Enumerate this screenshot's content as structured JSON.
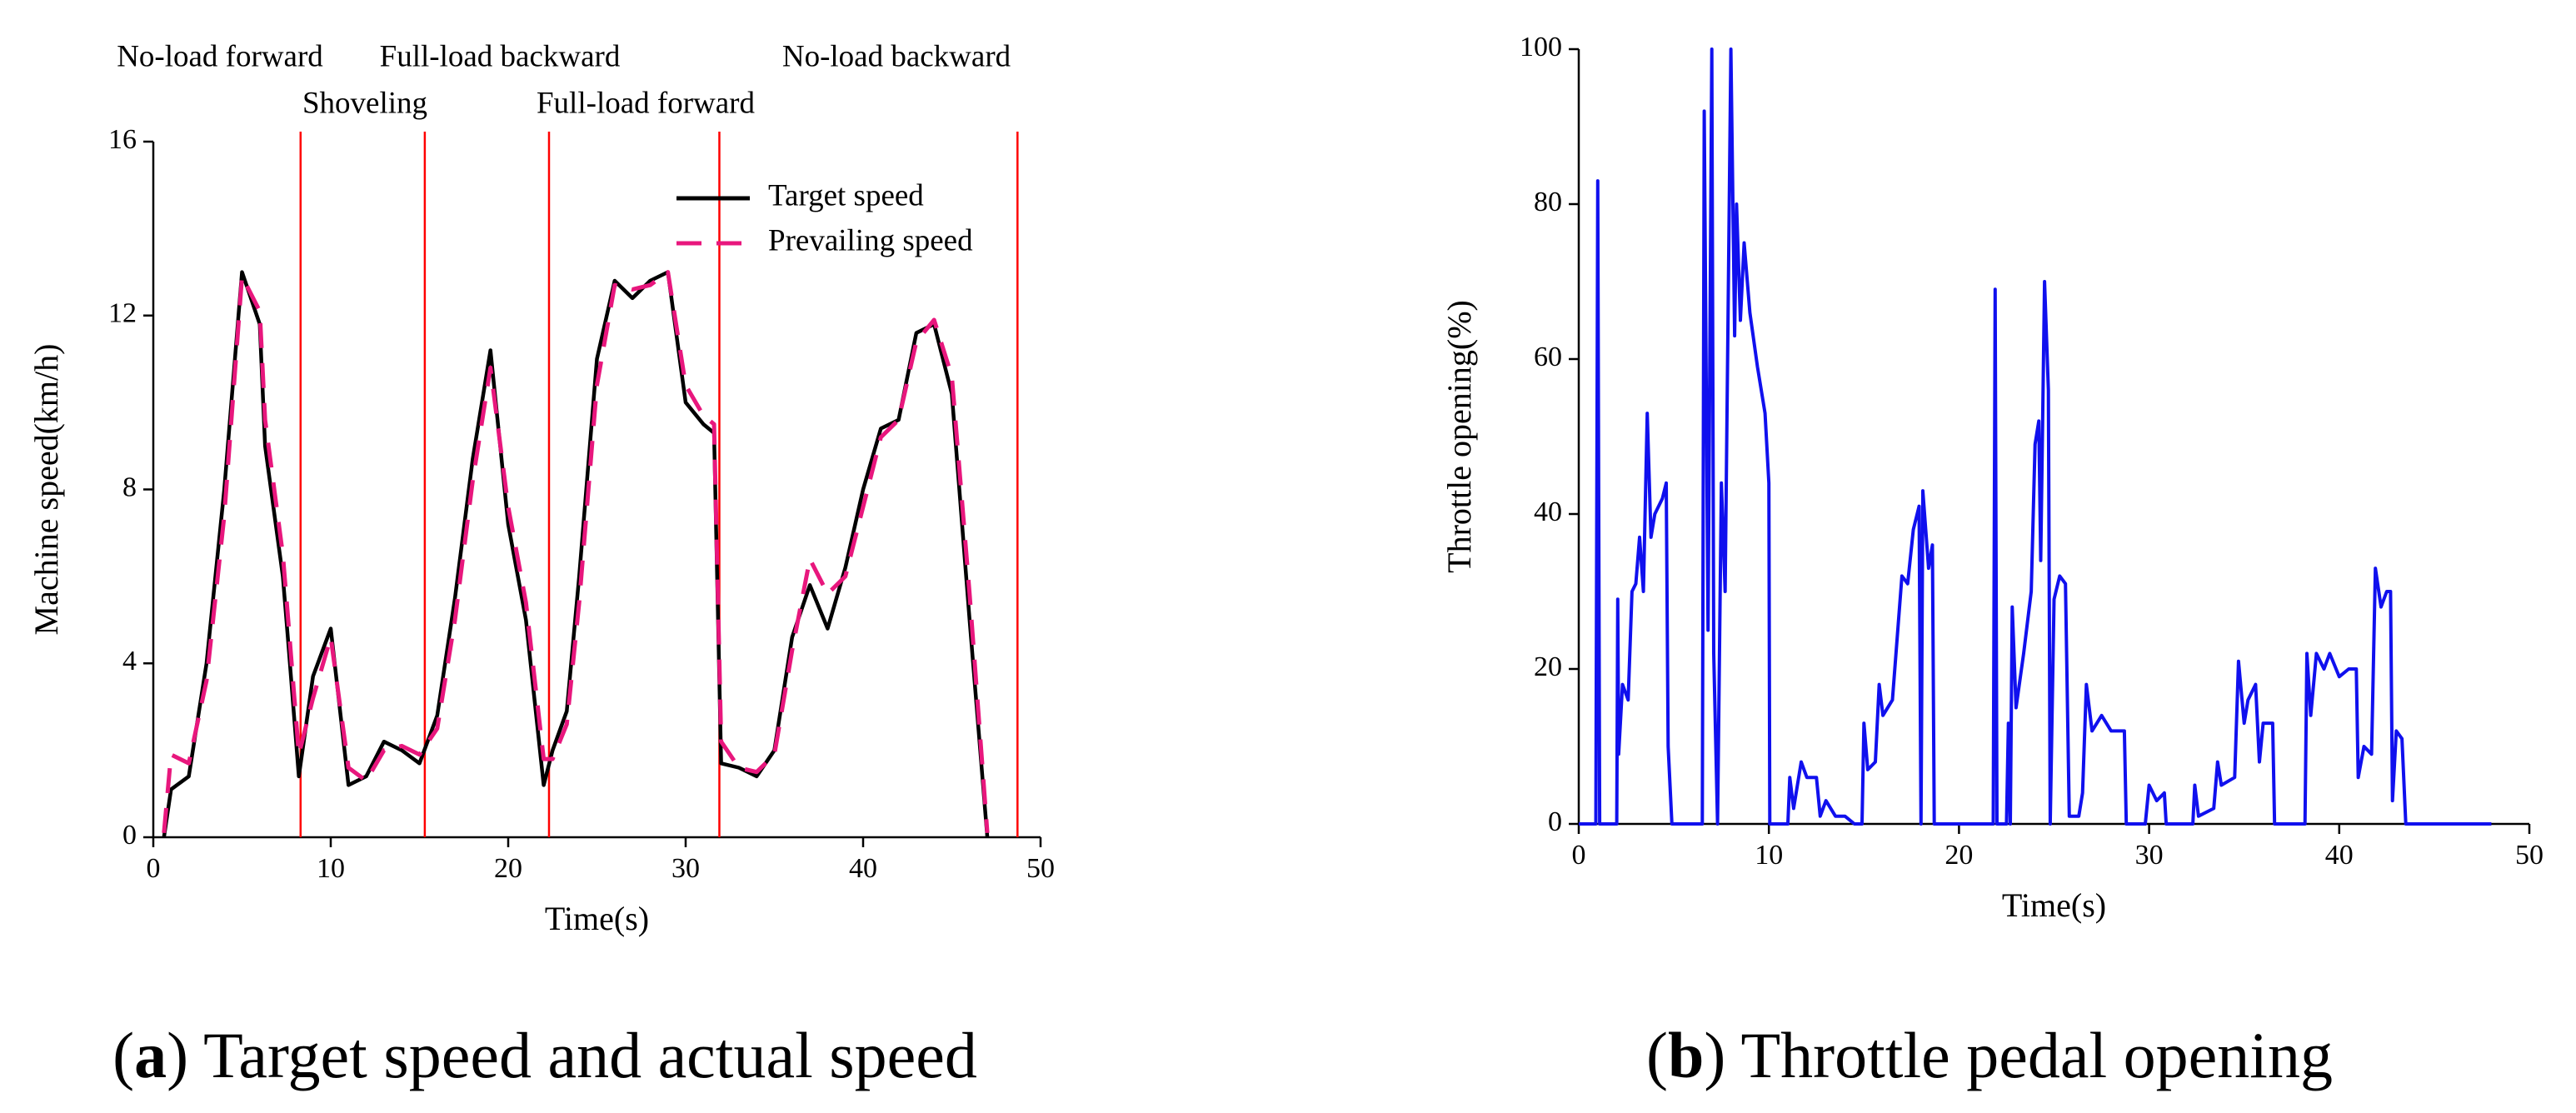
{
  "chart_data": [
    {
      "type": "line",
      "xlabel": "Time(s)",
      "ylabel": "Machine speed(km/h)",
      "caption": {
        "open": "(",
        "label": "a",
        "text": ") Target speed and actual speed"
      },
      "annotations": [
        "No-load forward",
        "Shoveling",
        "Full-load backward",
        "Full-load forward",
        "No-load backward"
      ],
      "vlines": {
        "color": "#ff0000",
        "x": [
          8.3,
          15.3,
          22.3,
          31.9,
          48.7
        ]
      },
      "xlim": [
        0,
        50
      ],
      "xticks": [
        0,
        10,
        20,
        30,
        40,
        50
      ],
      "ylim": [
        0,
        16
      ],
      "yticks": [
        0,
        4,
        8,
        12,
        16
      ],
      "legend": "upper right",
      "x": [
        0.6,
        1.0,
        2.0,
        3.0,
        4.0,
        5.0,
        6.0,
        6.3,
        7.3,
        7.6,
        8.2,
        9.0,
        10.0,
        11.0,
        12.0,
        13.0,
        14.0,
        15.0,
        16.0,
        17.0,
        18.0,
        19.0,
        20.0,
        21.0,
        22.0,
        22.5,
        23.3,
        24.0,
        25.0,
        26.0,
        27.0,
        28.0,
        29.0,
        30.0,
        31.0,
        31.6,
        32.0,
        33.0,
        34.0,
        35.0,
        36.0,
        37.0,
        38.0,
        39.0,
        40.0,
        41.0,
        42.0,
        43.0,
        44.0,
        45.0,
        46.0,
        47.0
      ],
      "series": [
        {
          "name": "Target speed",
          "color": "#000000",
          "dash": false,
          "values": [
            0,
            1.1,
            1.4,
            4.0,
            8.0,
            13.0,
            11.8,
            9.0,
            6.0,
            4.5,
            1.4,
            3.7,
            4.8,
            1.2,
            1.4,
            2.2,
            2.0,
            1.7,
            2.8,
            5.5,
            8.7,
            11.2,
            7.2,
            5.0,
            1.2,
            2.0,
            2.9,
            6.0,
            11.0,
            12.8,
            12.4,
            12.8,
            13.0,
            10.0,
            9.5,
            9.3,
            1.7,
            1.6,
            1.4,
            2.0,
            4.6,
            5.8,
            4.8,
            6.2,
            8.0,
            9.4,
            9.6,
            11.6,
            11.8,
            10.2,
            5.0,
            0
          ]
        },
        {
          "name": "Prevailing speed",
          "color": "#e8177d",
          "dash": true,
          "values": [
            0.1,
            1.9,
            1.7,
            3.6,
            7.4,
            12.9,
            12.1,
            9.6,
            6.5,
            5.0,
            1.9,
            3.2,
            4.6,
            1.6,
            1.3,
            2.0,
            2.1,
            1.9,
            2.5,
            5.0,
            8.2,
            10.8,
            7.6,
            5.4,
            1.8,
            1.8,
            2.6,
            5.4,
            10.4,
            12.7,
            12.6,
            12.7,
            13.0,
            10.4,
            9.7,
            9.5,
            2.2,
            1.6,
            1.5,
            1.9,
            4.3,
            6.4,
            5.6,
            6.0,
            7.6,
            9.2,
            9.6,
            11.4,
            11.9,
            10.6,
            5.6,
            0.1
          ]
        }
      ]
    },
    {
      "type": "line",
      "xlabel": "Time(s)",
      "ylabel": "Throttle opening(%)",
      "caption": {
        "open": "(",
        "label": "b",
        "text": ") Throttle pedal opening"
      },
      "xlim": [
        0,
        50
      ],
      "xticks": [
        0,
        10,
        20,
        30,
        40,
        50
      ],
      "ylim": [
        0,
        100
      ],
      "yticks": [
        0,
        20,
        40,
        60,
        80,
        100
      ],
      "x": [
        0,
        0.9,
        1.0,
        1.1,
        2.0,
        2.05,
        2.1,
        2.3,
        2.6,
        2.8,
        3.0,
        3.2,
        3.4,
        3.6,
        3.8,
        4.0,
        4.4,
        4.6,
        4.7,
        4.9,
        6.5,
        6.6,
        6.8,
        7.0,
        7.1,
        7.3,
        7.5,
        7.7,
        8.0,
        8.2,
        8.3,
        8.5,
        8.7,
        9.0,
        9.4,
        9.8,
        10.0,
        10.05,
        11.0,
        11.1,
        11.3,
        11.7,
        12.0,
        12.5,
        12.7,
        13.0,
        13.5,
        14.0,
        14.5,
        14.9,
        15.0,
        15.2,
        15.6,
        15.8,
        16.0,
        16.5,
        17.0,
        17.3,
        17.6,
        17.9,
        18.0,
        18.1,
        18.4,
        18.6,
        18.7,
        21.8,
        21.9,
        22.0,
        22.5,
        22.6,
        22.7,
        22.8,
        23.0,
        23.4,
        23.8,
        24.0,
        24.2,
        24.3,
        24.5,
        24.7,
        24.8,
        25.0,
        25.3,
        25.6,
        25.8,
        26.3,
        26.5,
        26.7,
        27.0,
        27.5,
        28.0,
        28.7,
        28.8,
        29.8,
        30.0,
        30.4,
        30.8,
        30.9,
        32.3,
        32.4,
        32.6,
        33.4,
        33.6,
        33.8,
        34.5,
        34.7,
        35.0,
        35.2,
        35.6,
        35.8,
        36.0,
        36.5,
        36.6,
        38.2,
        38.3,
        38.5,
        38.8,
        39.2,
        39.5,
        40.0,
        40.5,
        40.9,
        41.0,
        41.3,
        41.7,
        41.9,
        42.2,
        42.5,
        42.7,
        42.8,
        43.0,
        43.3,
        43.5,
        48.0
      ],
      "series": [
        {
          "name": "Throttle opening",
          "color": "#1010ee",
          "dash": false,
          "values": [
            0,
            0,
            83,
            0,
            0,
            29,
            9,
            18,
            16,
            30,
            31,
            37,
            30,
            53,
            37,
            40,
            42,
            44,
            10,
            0,
            0,
            92,
            25,
            100,
            22,
            0,
            44,
            30,
            100,
            63,
            80,
            65,
            75,
            66,
            59,
            53,
            44,
            0,
            0,
            6,
            2,
            8,
            6,
            6,
            1,
            3,
            1,
            1,
            0,
            0,
            13,
            7,
            8,
            18,
            14,
            16,
            32,
            31,
            38,
            41,
            0,
            43,
            33,
            36,
            0,
            0,
            69,
            0,
            0,
            13,
            0,
            28,
            15,
            22,
            30,
            49,
            52,
            34,
            70,
            56,
            0,
            29,
            32,
            31,
            1,
            1,
            4,
            18,
            12,
            14,
            12,
            12,
            0,
            0,
            5,
            3,
            4,
            0,
            0,
            5,
            1,
            2,
            8,
            5,
            6,
            21,
            13,
            16,
            18,
            8,
            13,
            13,
            0,
            0,
            22,
            14,
            22,
            20,
            22,
            19,
            20,
            20,
            6,
            10,
            9,
            33,
            28,
            30,
            30,
            3,
            12,
            11,
            0,
            0
          ]
        }
      ]
    }
  ]
}
